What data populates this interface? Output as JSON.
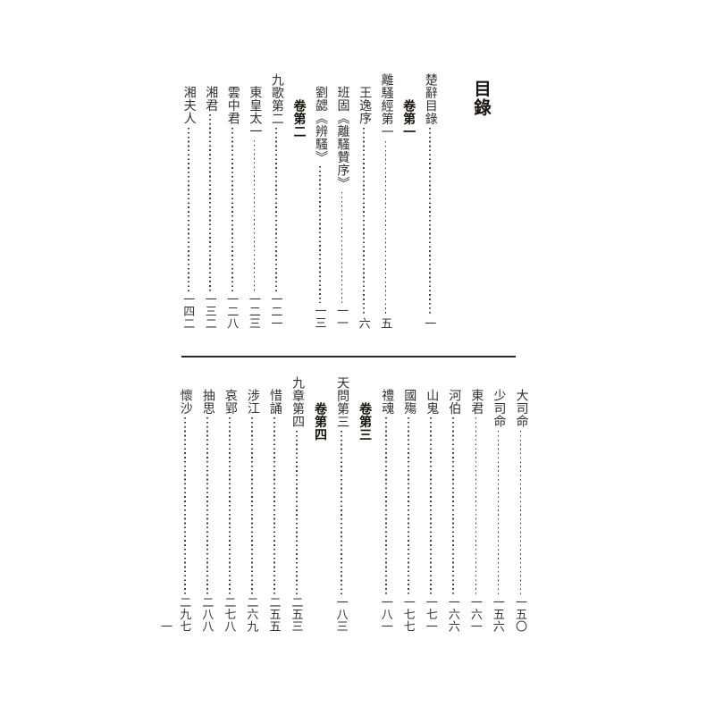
{
  "page": {
    "title": "目錄",
    "folio": "一",
    "ink_color": "#332f2b",
    "heading_color": "#141008",
    "background_color": "#ffffff"
  },
  "sections": [
    {
      "name": "top-page",
      "columns": [
        {
          "kind": "main",
          "title": "楚辭目錄",
          "page": "一"
        },
        {
          "kind": "chapter",
          "title": "卷第一",
          "page": ""
        },
        {
          "kind": "main",
          "title": "離騷經第一",
          "page": "五"
        },
        {
          "kind": "sub",
          "title": "王逸序",
          "page": "六"
        },
        {
          "kind": "sub",
          "title": "班固《離騷贊序》",
          "page": "一一"
        },
        {
          "kind": "sub",
          "title": "劉勰《辨騷》",
          "page": "一三"
        },
        {
          "kind": "chapter",
          "title": "卷第二",
          "page": ""
        },
        {
          "kind": "main",
          "title": "九歌第二",
          "page": "一二一"
        },
        {
          "kind": "sub",
          "title": "東皇太一",
          "page": "一二三"
        },
        {
          "kind": "sub",
          "title": "雲中君",
          "page": "一二八"
        },
        {
          "kind": "sub",
          "title": "湘君",
          "page": "一三二"
        },
        {
          "kind": "sub",
          "title": "湘夫人",
          "page": "一四二"
        }
      ]
    },
    {
      "name": "bottom-page",
      "columns": [
        {
          "kind": "sub",
          "title": "大司命",
          "page": "一五〇"
        },
        {
          "kind": "sub",
          "title": "少司命",
          "page": "一五六"
        },
        {
          "kind": "sub",
          "title": "東君",
          "page": "一六一"
        },
        {
          "kind": "sub",
          "title": "河伯",
          "page": "一六六"
        },
        {
          "kind": "sub",
          "title": "山鬼",
          "page": "一七一"
        },
        {
          "kind": "sub",
          "title": "國殤",
          "page": "一七七"
        },
        {
          "kind": "sub",
          "title": "禮魂",
          "page": "一八一"
        },
        {
          "kind": "chapter",
          "title": "卷第三",
          "page": ""
        },
        {
          "kind": "main",
          "title": "天問第三",
          "page": "一八三"
        },
        {
          "kind": "chapter",
          "title": "卷第四",
          "page": ""
        },
        {
          "kind": "main",
          "title": "九章第四",
          "page": "二五三"
        },
        {
          "kind": "sub",
          "title": "惜誦",
          "page": "二五五"
        },
        {
          "kind": "sub",
          "title": "涉江",
          "page": "二六九"
        },
        {
          "kind": "sub",
          "title": "哀郢",
          "page": "二七八"
        },
        {
          "kind": "sub",
          "title": "抽思",
          "page": "二八八"
        },
        {
          "kind": "sub",
          "title": "懷沙",
          "page": "二九七"
        }
      ]
    }
  ]
}
